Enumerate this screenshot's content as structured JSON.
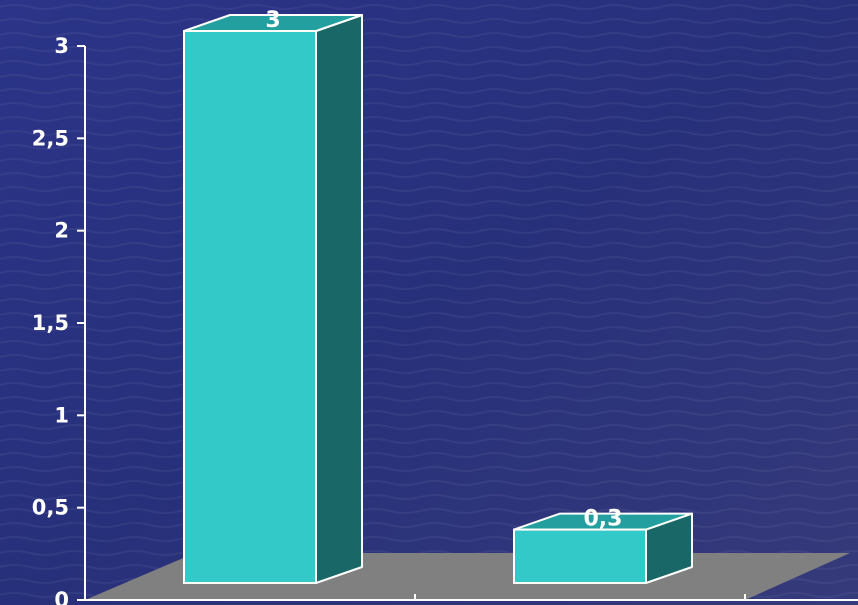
{
  "chart_data": {
    "type": "bar",
    "categories": [
      "",
      ""
    ],
    "values": [
      3,
      0.3
    ],
    "value_labels": [
      "3",
      "0,3"
    ],
    "ylim": [
      0,
      3
    ],
    "y_ticks": [
      {
        "value": 0,
        "label": "0"
      },
      {
        "value": 0.5,
        "label": "0,5"
      },
      {
        "value": 1,
        "label": "1"
      },
      {
        "value": 1.5,
        "label": "1,5"
      },
      {
        "value": 2,
        "label": "2"
      },
      {
        "value": 2.5,
        "label": "2,5"
      },
      {
        "value": 3,
        "label": "3"
      }
    ],
    "style": "3d",
    "grid": false,
    "legend": "none",
    "colors": {
      "background": "#2a2f78",
      "bar_front": "#33c9c9",
      "bar_top": "#239f9f",
      "bar_side": "#1a6767",
      "floor": "#808080",
      "axis": "#ffffff",
      "text": "#ffffff"
    }
  }
}
